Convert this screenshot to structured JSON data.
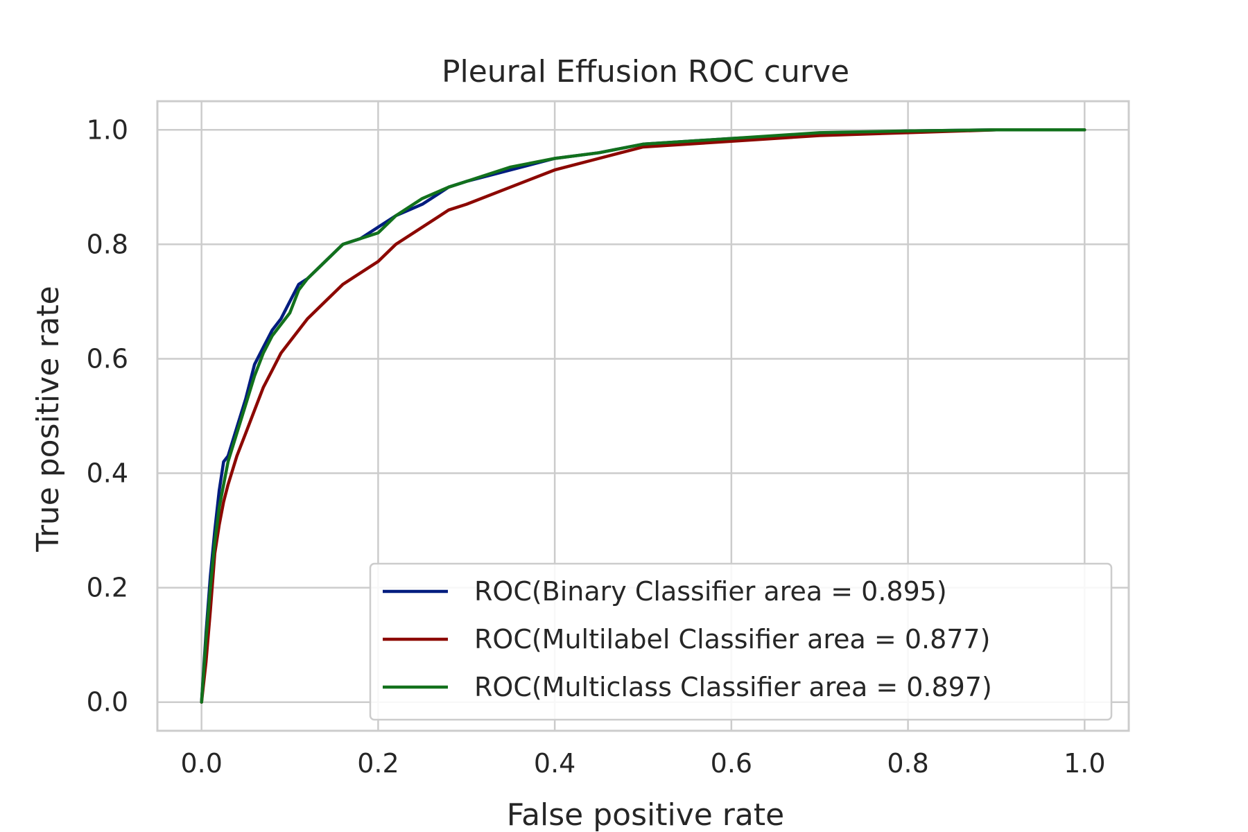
{
  "chart_data": {
    "type": "line",
    "title": "Pleural Effusion ROC curve",
    "xlabel": "False positive rate",
    "ylabel": "True positive rate",
    "xlim": [
      -0.05,
      1.05
    ],
    "ylim": [
      -0.05,
      1.05
    ],
    "xticks": [
      "0.0",
      "0.2",
      "0.4",
      "0.6",
      "0.8",
      "1.0"
    ],
    "yticks": [
      "0.0",
      "0.2",
      "0.4",
      "0.6",
      "0.8",
      "1.0"
    ],
    "grid": true,
    "legend_position": "lower-right",
    "series": [
      {
        "name": "ROC(Binary Classifier area = 0.895)",
        "color": "#001c7f",
        "x": [
          0,
          0.005,
          0.01,
          0.015,
          0.02,
          0.025,
          0.03,
          0.04,
          0.05,
          0.06,
          0.07,
          0.08,
          0.09,
          0.1,
          0.11,
          0.12,
          0.14,
          0.16,
          0.18,
          0.2,
          0.22,
          0.25,
          0.28,
          0.3,
          0.35,
          0.4,
          0.45,
          0.5,
          0.6,
          0.7,
          0.8,
          0.9,
          1.0
        ],
        "y": [
          0,
          0.12,
          0.22,
          0.3,
          0.37,
          0.42,
          0.43,
          0.48,
          0.53,
          0.59,
          0.62,
          0.65,
          0.67,
          0.7,
          0.73,
          0.74,
          0.77,
          0.8,
          0.81,
          0.83,
          0.85,
          0.87,
          0.9,
          0.91,
          0.93,
          0.95,
          0.96,
          0.975,
          0.985,
          0.993,
          0.998,
          1.0,
          1.0
        ]
      },
      {
        "name": "ROC(Multilabel Classifier area = 0.877)",
        "color": "#8c0800",
        "x": [
          0,
          0.005,
          0.01,
          0.015,
          0.02,
          0.025,
          0.03,
          0.04,
          0.05,
          0.06,
          0.07,
          0.08,
          0.09,
          0.1,
          0.12,
          0.14,
          0.16,
          0.18,
          0.2,
          0.22,
          0.25,
          0.28,
          0.3,
          0.35,
          0.4,
          0.45,
          0.5,
          0.6,
          0.7,
          0.8,
          0.9,
          1.0
        ],
        "y": [
          0,
          0.07,
          0.16,
          0.26,
          0.31,
          0.35,
          0.38,
          0.43,
          0.47,
          0.51,
          0.55,
          0.58,
          0.61,
          0.63,
          0.67,
          0.7,
          0.73,
          0.75,
          0.77,
          0.8,
          0.83,
          0.86,
          0.87,
          0.9,
          0.93,
          0.95,
          0.97,
          0.98,
          0.99,
          0.995,
          1.0,
          1.0
        ]
      },
      {
        "name": "ROC(Multiclass Classifier area = 0.897)",
        "color": "#12711c",
        "x": [
          0,
          0.005,
          0.01,
          0.015,
          0.02,
          0.025,
          0.03,
          0.04,
          0.05,
          0.06,
          0.07,
          0.08,
          0.09,
          0.1,
          0.11,
          0.12,
          0.14,
          0.16,
          0.18,
          0.2,
          0.22,
          0.25,
          0.28,
          0.3,
          0.35,
          0.4,
          0.45,
          0.5,
          0.6,
          0.7,
          0.8,
          0.9,
          1.0
        ],
        "y": [
          0,
          0.11,
          0.2,
          0.28,
          0.34,
          0.38,
          0.42,
          0.47,
          0.52,
          0.57,
          0.61,
          0.64,
          0.66,
          0.68,
          0.72,
          0.74,
          0.77,
          0.8,
          0.81,
          0.82,
          0.85,
          0.88,
          0.9,
          0.91,
          0.935,
          0.95,
          0.96,
          0.975,
          0.985,
          0.995,
          0.998,
          1.0,
          1.0
        ]
      }
    ]
  }
}
